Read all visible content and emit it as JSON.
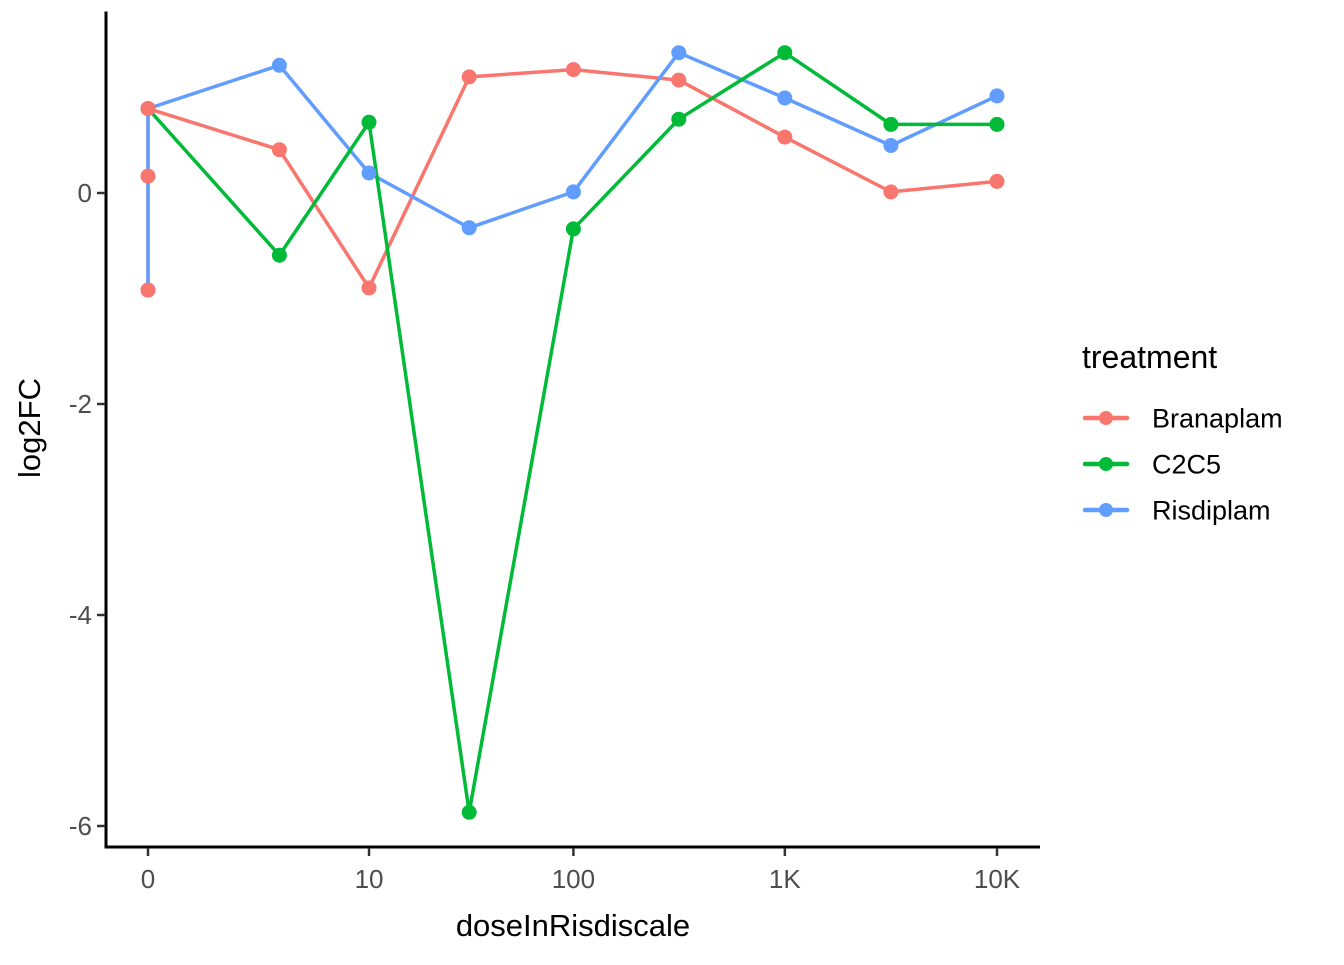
{
  "figure": {
    "background": "#FFFFFF"
  },
  "axes": {
    "x": {
      "title": "doseInRisdiscale",
      "tick_labels": [
        "0",
        "10",
        "100",
        "1K",
        "10K"
      ],
      "tick_doses": [
        0,
        10,
        100,
        1000,
        10000
      ]
    },
    "y": {
      "title": "log2FC",
      "tick_labels": [
        "0",
        "-2",
        "-4",
        "-6"
      ],
      "tick_values": [
        0,
        -2,
        -4,
        -6
      ]
    }
  },
  "legend": {
    "title": "treatment",
    "entries": [
      {
        "label": "Branaplam",
        "color": "#F8766D"
      },
      {
        "label": "C2C5",
        "color": "#00BA38"
      },
      {
        "label": "Risdiplam",
        "color": "#619CFF"
      }
    ]
  },
  "chart_data": {
    "type": "line",
    "title": "",
    "xlabel": "doseInRisdiscale",
    "ylabel": "log2FC",
    "x_scale": "log10(dose+1), dose 0 plotted at origin",
    "x_tick_doses": [
      0,
      10,
      100,
      1000,
      10000
    ],
    "x_tick_labels": [
      "0",
      "10",
      "100",
      "1K",
      "10K"
    ],
    "y_ticks": [
      0,
      -2,
      -4,
      -6
    ],
    "ylim": [
      -6.2,
      1.75
    ],
    "grid": false,
    "legend_title": "treatment",
    "legend_position": "right",
    "series": [
      {
        "name": "Branaplam",
        "color": "#F8766D",
        "points": [
          {
            "dose": 0,
            "log2fc": -0.92
          },
          {
            "dose": 0,
            "log2fc": 0.16
          },
          {
            "dose": 0,
            "log2fc": 0.8
          },
          {
            "dose": 3.16,
            "log2fc": 0.41
          },
          {
            "dose": 10,
            "log2fc": -0.9
          },
          {
            "dose": 31.6,
            "log2fc": 1.1
          },
          {
            "dose": 100,
            "log2fc": 1.17
          },
          {
            "dose": 316,
            "log2fc": 1.07
          },
          {
            "dose": 1000,
            "log2fc": 0.53
          },
          {
            "dose": 3162,
            "log2fc": 0.01
          },
          {
            "dose": 10000,
            "log2fc": 0.11
          }
        ]
      },
      {
        "name": "C2C5",
        "color": "#00BA38",
        "points": [
          {
            "dose": 0,
            "log2fc": 0.8
          },
          {
            "dose": 3.16,
            "log2fc": -0.59
          },
          {
            "dose": 10,
            "log2fc": 0.67
          },
          {
            "dose": 31.6,
            "log2fc": -5.87
          },
          {
            "dose": 100,
            "log2fc": -0.34
          },
          {
            "dose": 316,
            "log2fc": 0.7
          },
          {
            "dose": 1000,
            "log2fc": 1.33
          },
          {
            "dose": 3162,
            "log2fc": 0.65
          },
          {
            "dose": 10000,
            "log2fc": 0.65
          }
        ]
      },
      {
        "name": "Risdiplam",
        "color": "#619CFF",
        "points": [
          {
            "dose": 0,
            "log2fc": -0.92
          },
          {
            "dose": 0,
            "log2fc": 0.8
          },
          {
            "dose": 3.16,
            "log2fc": 1.21
          },
          {
            "dose": 10,
            "log2fc": 0.19
          },
          {
            "dose": 31.6,
            "log2fc": -0.33
          },
          {
            "dose": 100,
            "log2fc": 0.01
          },
          {
            "dose": 316,
            "log2fc": 1.33
          },
          {
            "dose": 1000,
            "log2fc": 0.9
          },
          {
            "dose": 3162,
            "log2fc": 0.45
          },
          {
            "dose": 10000,
            "log2fc": 0.92
          }
        ]
      }
    ]
  }
}
